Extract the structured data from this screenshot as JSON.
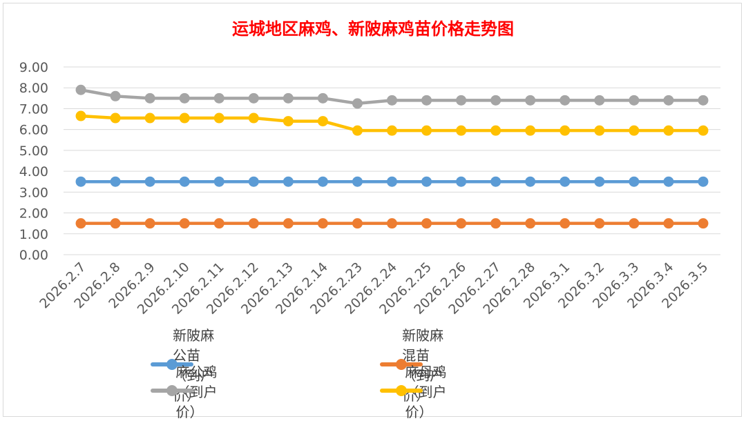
{
  "chart_data": {
    "type": "line",
    "title": "运城地区麻鸡、新陂麻鸡苗价格走势图",
    "xlabel": "",
    "ylabel": "",
    "ylim": [
      0,
      9
    ],
    "y_ticks": [
      "0.00",
      "1.00",
      "2.00",
      "3.00",
      "4.00",
      "5.00",
      "6.00",
      "7.00",
      "8.00",
      "9.00"
    ],
    "grid": true,
    "legend_position": "bottom",
    "categories": [
      "2026.2.7",
      "2026.2.8",
      "2026.2.9",
      "2026.2.10",
      "2026.2.11",
      "2026.2.12",
      "2026.2.13",
      "2026.2.14",
      "2026.2.23",
      "2026.2.24",
      "2026.2.25",
      "2026.2.26",
      "2026.2.27",
      "2026.2.28",
      "2026.3.1",
      "2026.3.2",
      "2026.3.3",
      "2026.3.4",
      "2026.3.5"
    ],
    "series": [
      {
        "name": "新陂麻公苗（到户价）",
        "color": "#5b9bd5",
        "values": [
          3.5,
          3.5,
          3.5,
          3.5,
          3.5,
          3.5,
          3.5,
          3.5,
          3.5,
          3.5,
          3.5,
          3.5,
          3.5,
          3.5,
          3.5,
          3.5,
          3.5,
          3.5,
          3.5
        ]
      },
      {
        "name": "新陂麻混苗（到户价）",
        "color": "#ed7d31",
        "values": [
          1.5,
          1.5,
          1.5,
          1.5,
          1.5,
          1.5,
          1.5,
          1.5,
          1.5,
          1.5,
          1.5,
          1.5,
          1.5,
          1.5,
          1.5,
          1.5,
          1.5,
          1.5,
          1.5
        ]
      },
      {
        "name": "麻公鸡（到户价）",
        "color": "#a5a5a5",
        "values": [
          7.9,
          7.6,
          7.5,
          7.5,
          7.5,
          7.5,
          7.5,
          7.5,
          7.25,
          7.4,
          7.4,
          7.4,
          7.4,
          7.4,
          7.4,
          7.4,
          7.4,
          7.4,
          7.4
        ]
      },
      {
        "name": "麻母鸡（到户价）",
        "color": "#ffc000",
        "values": [
          6.65,
          6.55,
          6.55,
          6.55,
          6.55,
          6.55,
          6.4,
          6.4,
          5.95,
          5.95,
          5.95,
          5.95,
          5.95,
          5.95,
          5.95,
          5.95,
          5.95,
          5.95,
          5.95
        ]
      }
    ]
  }
}
